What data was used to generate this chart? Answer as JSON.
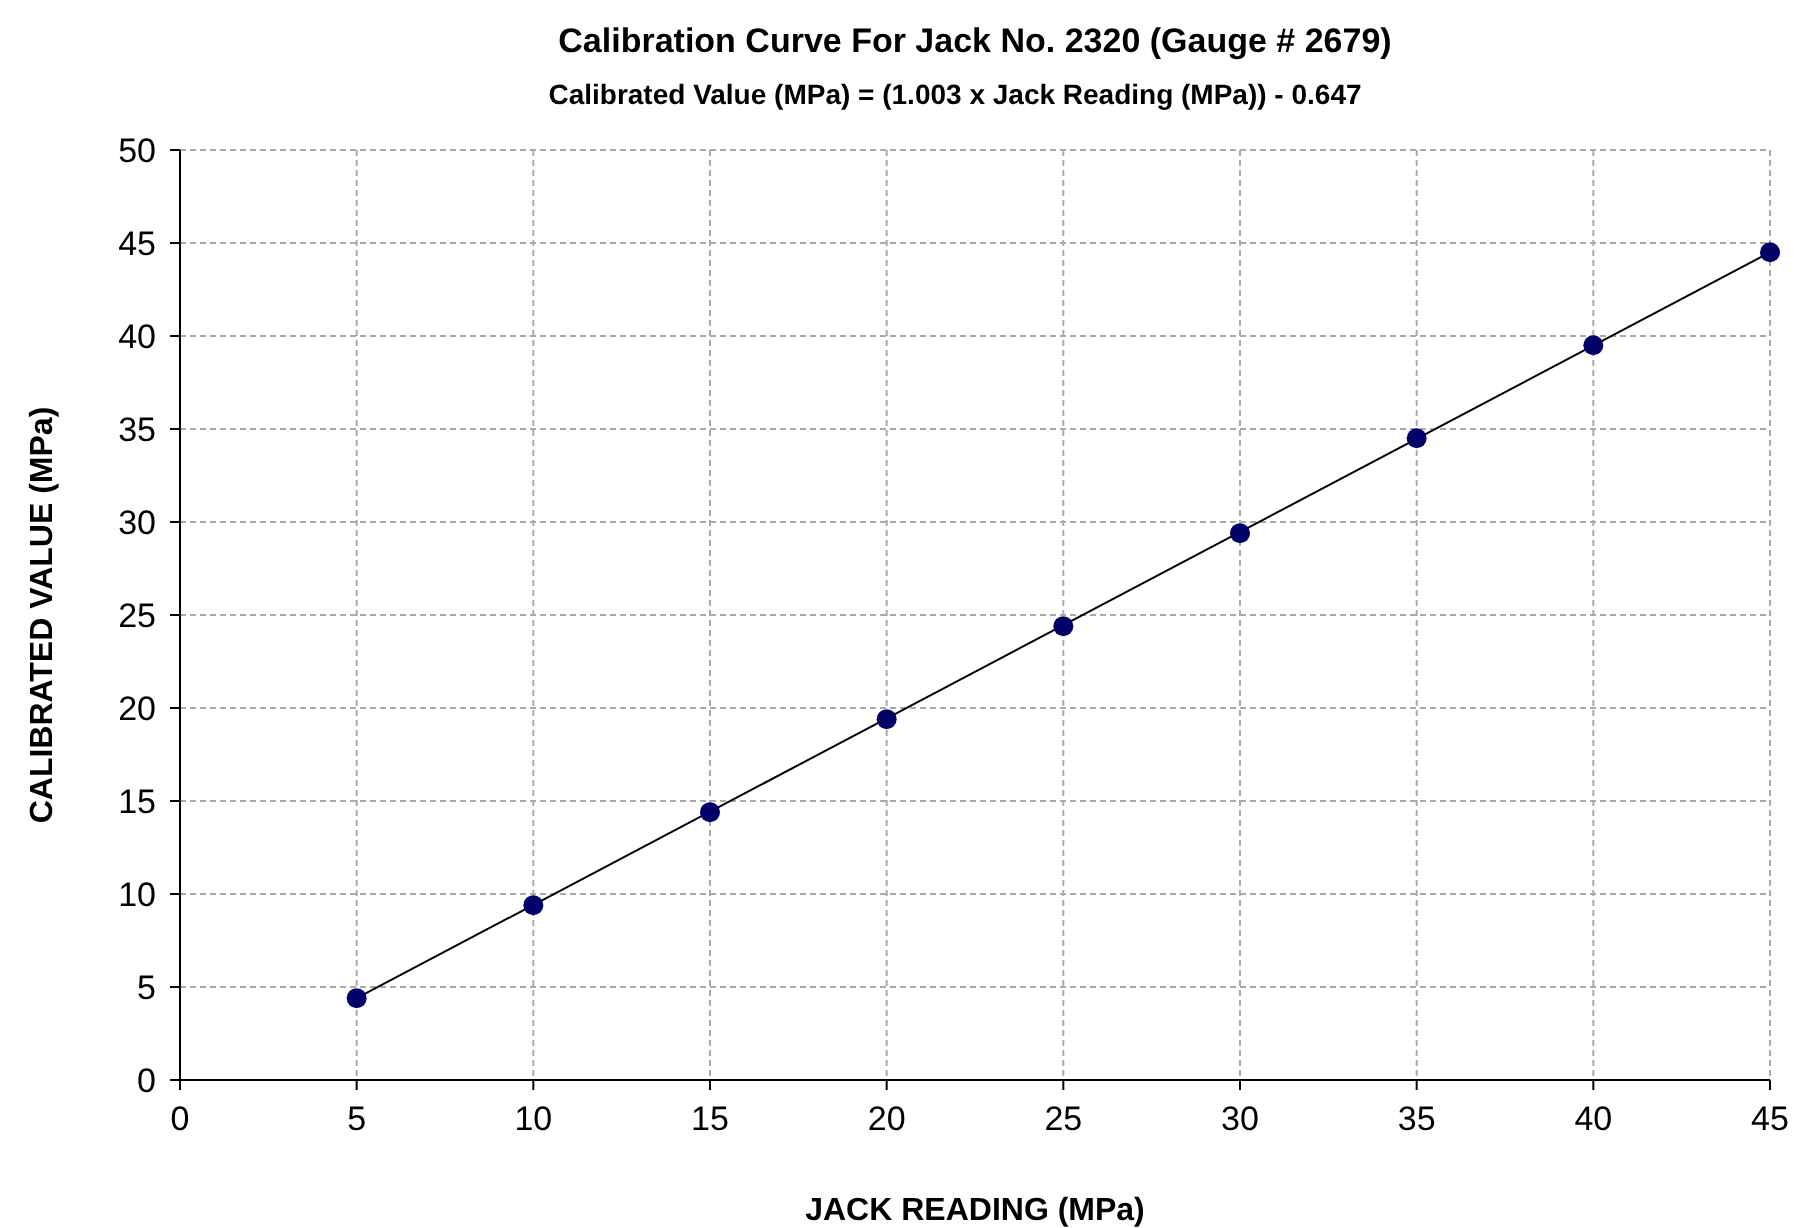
{
  "chart_data": {
    "type": "scatter",
    "title": "Calibration Curve For Jack No. 2320 (Gauge # 2679)",
    "subtitle": "Calibrated Value (MPa) = (1.003 x Jack Reading (MPa)) - 0.647",
    "xlabel": "JACK READING (MPa)",
    "ylabel": "CALIBRATED VALUE  (MPa)",
    "x": [
      5,
      10,
      15,
      20,
      25,
      30,
      35,
      40,
      45
    ],
    "series": [
      {
        "type": "line",
        "color": "#000000",
        "x": [
          5,
          45
        ],
        "values": [
          4.4,
          44.5
        ],
        "marker": "none"
      },
      {
        "color": "#000066",
        "values": [
          4.4,
          9.4,
          14.4,
          19.4,
          24.4,
          29.4,
          34.5,
          39.5,
          44.5
        ],
        "marker": "circle"
      }
    ],
    "xlim": [
      0,
      45
    ],
    "ylim": [
      0,
      50
    ],
    "xticks": [
      0,
      5,
      10,
      15,
      20,
      25,
      30,
      35,
      40,
      45
    ],
    "yticks": [
      0,
      5,
      10,
      15,
      20,
      25,
      30,
      35,
      40,
      45,
      50
    ],
    "grid": true
  }
}
